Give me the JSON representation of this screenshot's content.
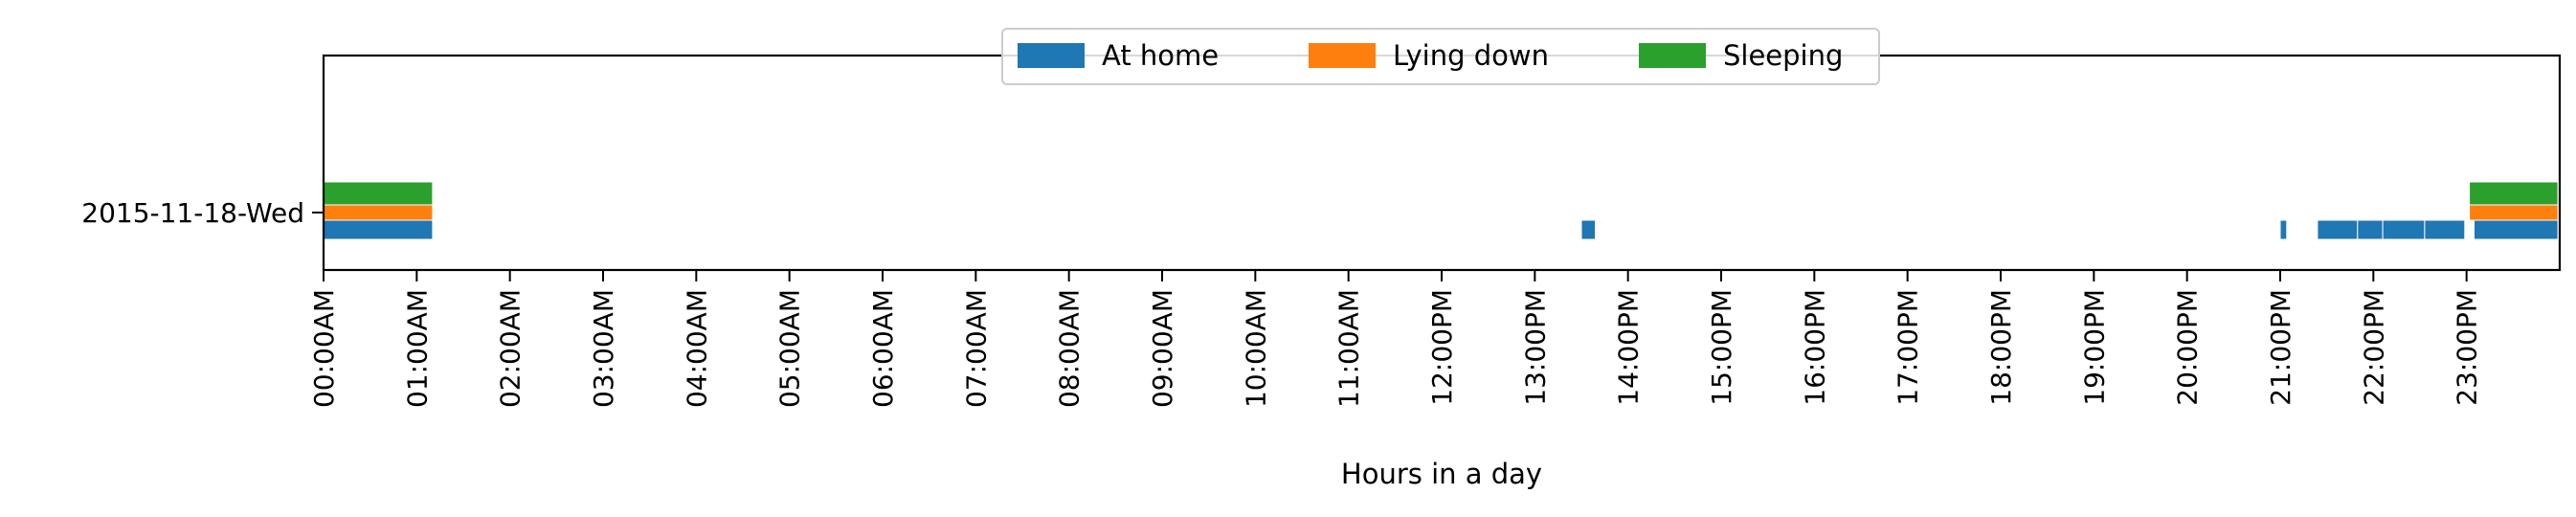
{
  "chart_data": {
    "type": "timeline",
    "title": "",
    "xlabel": "Hours in a day",
    "ylabel": "",
    "x_unit": "hours",
    "xlim": [
      0,
      24
    ],
    "x_ticks": [
      {
        "value": 0,
        "label": "00:00AM"
      },
      {
        "value": 1,
        "label": "01:00AM"
      },
      {
        "value": 2,
        "label": "02:00AM"
      },
      {
        "value": 3,
        "label": "03:00AM"
      },
      {
        "value": 4,
        "label": "04:00AM"
      },
      {
        "value": 5,
        "label": "05:00AM"
      },
      {
        "value": 6,
        "label": "06:00AM"
      },
      {
        "value": 7,
        "label": "07:00AM"
      },
      {
        "value": 8,
        "label": "08:00AM"
      },
      {
        "value": 9,
        "label": "09:00AM"
      },
      {
        "value": 10,
        "label": "10:00AM"
      },
      {
        "value": 11,
        "label": "11:00AM"
      },
      {
        "value": 12,
        "label": "12:00PM"
      },
      {
        "value": 13,
        "label": "13:00PM"
      },
      {
        "value": 14,
        "label": "14:00PM"
      },
      {
        "value": 15,
        "label": "15:00PM"
      },
      {
        "value": 16,
        "label": "16:00PM"
      },
      {
        "value": 17,
        "label": "17:00PM"
      },
      {
        "value": 18,
        "label": "18:00PM"
      },
      {
        "value": 19,
        "label": "19:00PM"
      },
      {
        "value": 20,
        "label": "20:00PM"
      },
      {
        "value": 21,
        "label": "21:00PM"
      },
      {
        "value": 22,
        "label": "22:00PM"
      },
      {
        "value": 23,
        "label": "23:00PM"
      }
    ],
    "categories": [
      "2015-11-18-Wed"
    ],
    "grid": false,
    "legend_position": "top-center",
    "series": [
      {
        "name": "At home",
        "color": "#1f77b4",
        "intervals": [
          [
            0.0,
            1.17
          ],
          [
            13.5,
            13.65
          ],
          [
            21.0,
            21.07
          ],
          [
            21.4,
            21.83
          ],
          [
            21.83,
            22.1
          ],
          [
            22.1,
            22.55
          ],
          [
            22.55,
            22.98
          ],
          [
            23.08,
            23.98
          ]
        ]
      },
      {
        "name": "Lying down",
        "color": "#ff7f0e",
        "intervals": [
          [
            0.0,
            1.17
          ],
          [
            23.03,
            23.98
          ]
        ]
      },
      {
        "name": "Sleeping",
        "color": "#2ca02c",
        "intervals": [
          [
            0.0,
            1.17
          ],
          [
            23.03,
            23.98
          ]
        ]
      }
    ]
  }
}
